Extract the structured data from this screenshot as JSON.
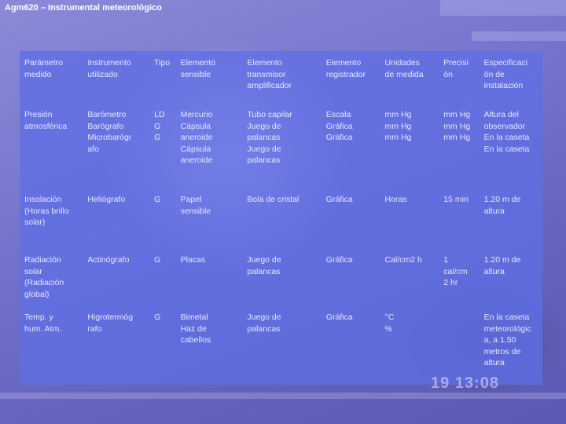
{
  "title": "Agm620 – Instrumental meteorológico",
  "photo_stamp": "19 13:08",
  "table": {
    "headers": [
      [
        "Parámetro",
        "medido"
      ],
      [
        "Instrumento",
        "utilizado"
      ],
      [
        "Tipo"
      ],
      [
        "Elemento",
        "sensible"
      ],
      [
        "Elemento",
        "transmisor",
        "amplificador"
      ],
      [
        "Elemento",
        "registrador"
      ],
      [
        "Unidades",
        "de medida"
      ],
      [
        "Precisi",
        "ón"
      ],
      [
        "Especificaci",
        "ón de",
        "instalación"
      ]
    ],
    "rows": [
      [
        [
          "Presión",
          "atmosférica"
        ],
        [
          "Barómetro",
          "Barógrafo",
          "Microbarógr",
          "afo"
        ],
        [
          "LD",
          "G",
          "G"
        ],
        [
          "Mercurio",
          "Cápsula",
          "aneroide",
          "Cápsula",
          "aneroide"
        ],
        [
          "Tubo capilar",
          "Juego de",
          "palancas",
          "Juego de",
          "palancas"
        ],
        [
          "Escala",
          "Gráfica",
          "Gráfica"
        ],
        [
          "mm Hg",
          "mm Hg",
          "mm Hg"
        ],
        [
          "mm Hg",
          "mm Hg",
          "mm Hg"
        ],
        [
          "Altura del",
          "observador",
          "En la caseta",
          "En la caseta"
        ]
      ],
      [
        [
          "Insolación",
          "(Horas brillo",
          "solar)"
        ],
        [
          "Heliógrafo"
        ],
        [
          "G"
        ],
        [
          "Papel",
          "sensible"
        ],
        [
          "Bola de cristal"
        ],
        [
          "Gráfica"
        ],
        [
          "Horas"
        ],
        [
          "15 min"
        ],
        [
          "1.20 m de",
          "altura"
        ]
      ],
      [
        [
          "Radiación",
          "solar",
          "(Radiación",
          "global)"
        ],
        [
          "Actinógrafo"
        ],
        [
          "G"
        ],
        [
          "Placas"
        ],
        [
          "Juego de",
          "palancas"
        ],
        [
          "Gráfica"
        ],
        [
          "Cal/cm2 h"
        ],
        [
          "1",
          "cal/cm",
          "2 hr"
        ],
        [
          "1.20 m de",
          "altura"
        ]
      ],
      [
        [
          "Temp. y",
          "hum. Atm."
        ],
        [
          "Higrotermóg",
          "rafo"
        ],
        [
          "G"
        ],
        [
          "Bimetal",
          "Haz de",
          "cabellos"
        ],
        [
          "Juego de",
          "palancas"
        ],
        [
          "Gráfica"
        ],
        [
          "°C",
          "%"
        ],
        [],
        [
          "En la caseta",
          "meteorológic",
          "a, a 1.50",
          "metros de",
          "altura"
        ]
      ]
    ]
  }
}
